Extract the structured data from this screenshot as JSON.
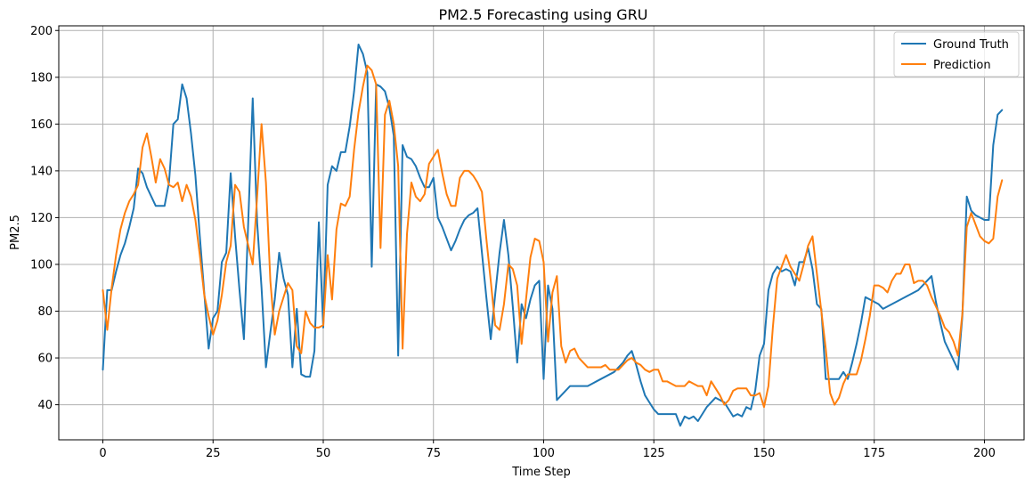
{
  "chart_data": {
    "type": "line",
    "title": "PM2.5 Forecasting using GRU",
    "xlabel": "Time Step",
    "ylabel": "PM2.5",
    "xlim": [
      -10,
      209
    ],
    "ylim": [
      25,
      202
    ],
    "xticks": [
      0,
      25,
      50,
      75,
      100,
      125,
      150,
      175,
      200
    ],
    "yticks": [
      40,
      60,
      80,
      100,
      120,
      140,
      160,
      180,
      200
    ],
    "grid": true,
    "legend_position": "top-right",
    "series": [
      {
        "name": "Ground Truth",
        "color": "#1f77b4",
        "values": [
          55,
          89,
          89,
          97,
          104,
          109,
          116,
          124,
          141,
          139,
          133,
          129,
          125,
          125,
          125,
          135,
          160,
          162,
          177,
          171,
          156,
          138,
          112,
          88,
          64,
          77,
          80,
          101,
          105,
          139,
          112,
          89,
          68,
          119,
          171,
          118,
          90,
          56,
          71,
          85,
          105,
          94,
          87,
          56,
          81,
          53,
          52,
          52,
          63,
          118,
          73,
          134,
          142,
          140,
          148,
          148,
          159,
          174,
          194,
          190,
          182,
          99,
          177,
          176,
          174,
          167,
          155,
          61,
          151,
          146,
          145,
          142,
          137,
          133,
          133,
          137,
          120,
          116,
          111,
          106,
          110,
          115,
          119,
          121,
          122,
          124,
          105,
          86,
          68,
          87,
          105,
          119,
          104,
          82,
          58,
          83,
          77,
          85,
          91,
          93,
          51,
          91,
          81,
          42,
          44,
          46,
          48,
          48,
          48,
          48,
          48,
          49,
          50,
          51,
          52,
          53,
          54,
          56,
          58,
          61,
          63,
          57,
          50,
          44,
          41,
          38,
          36,
          36,
          36,
          36,
          36,
          31,
          35,
          34,
          35,
          33,
          36,
          39,
          41,
          43,
          42,
          41,
          38,
          35,
          36,
          35,
          39,
          38,
          46,
          61,
          66,
          89,
          96,
          99,
          97,
          98,
          97,
          91,
          101,
          101,
          107,
          98,
          83,
          81,
          51,
          51,
          51,
          51,
          54,
          51,
          58,
          66,
          75,
          86,
          85,
          84,
          83,
          81,
          82,
          83,
          84,
          85,
          86,
          87,
          88,
          89,
          91,
          93,
          95,
          84,
          75,
          67,
          63,
          59,
          55,
          78,
          129,
          123,
          121,
          120,
          119,
          119,
          151,
          164,
          166
        ]
      },
      {
        "name": "Prediction",
        "color": "#ff7f0e",
        "values": [
          89,
          72,
          90,
          104,
          115,
          122,
          127,
          130,
          134,
          150,
          156,
          146,
          135,
          145,
          141,
          134,
          133,
          135,
          127,
          134,
          129,
          119,
          104,
          87,
          78,
          70,
          76,
          87,
          101,
          108,
          134,
          131,
          116,
          108,
          100,
          129,
          160,
          135,
          93,
          70,
          80,
          86,
          92,
          89,
          65,
          62,
          80,
          75,
          73,
          73,
          74,
          104,
          85,
          115,
          126,
          125,
          129,
          149,
          165,
          176,
          185,
          183,
          177,
          107,
          164,
          170,
          160,
          142,
          64,
          113,
          135,
          129,
          127,
          130,
          143,
          146,
          149,
          139,
          130,
          125,
          125,
          137,
          140,
          140,
          138,
          135,
          131,
          111,
          93,
          74,
          72,
          83,
          100,
          98,
          91,
          66,
          85,
          103,
          111,
          110,
          101,
          67,
          88,
          95,
          65,
          58,
          63,
          64,
          60,
          58,
          56,
          56,
          56,
          56,
          57,
          55,
          55,
          55,
          57,
          59,
          60,
          58,
          57,
          55,
          54,
          55,
          55,
          50,
          50,
          49,
          48,
          48,
          48,
          50,
          49,
          48,
          48,
          44,
          50,
          47,
          44,
          40,
          42,
          46,
          47,
          47,
          47,
          44,
          44,
          45,
          39,
          48,
          73,
          94,
          99,
          104,
          99,
          96,
          93,
          100,
          108,
          112,
          96,
          80,
          64,
          45,
          40,
          43,
          49,
          53,
          53,
          53,
          59,
          68,
          78,
          91,
          91,
          90,
          88,
          93,
          96,
          96,
          100,
          100,
          92,
          93,
          93,
          91,
          86,
          82,
          78,
          73,
          71,
          67,
          61,
          79,
          116,
          122,
          117,
          112,
          110,
          109,
          111,
          129,
          136
        ]
      }
    ]
  }
}
